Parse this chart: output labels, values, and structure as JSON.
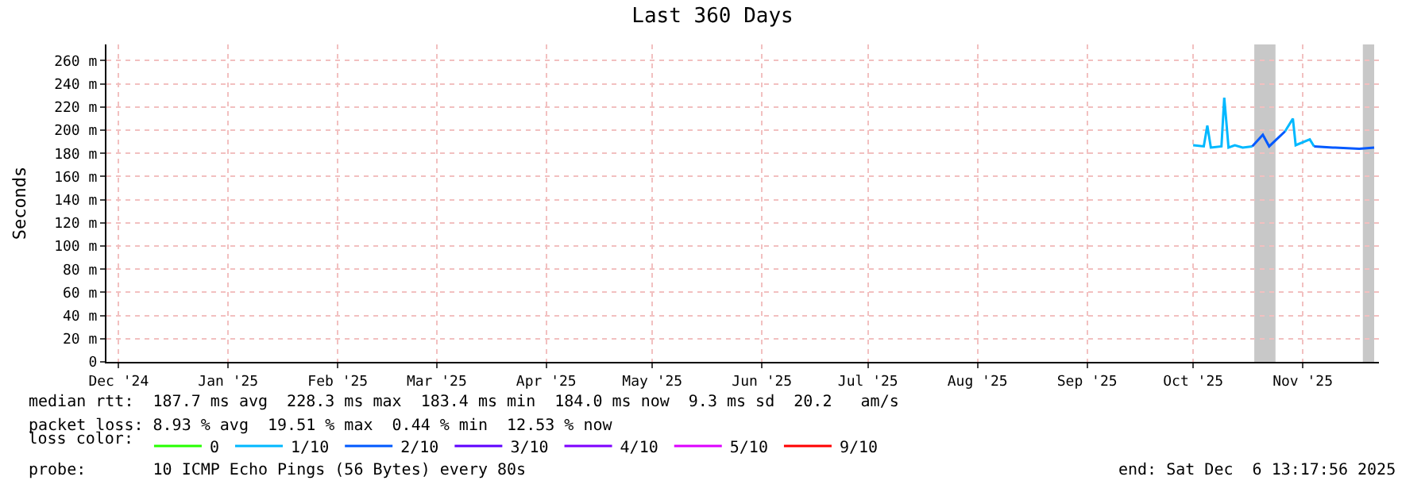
{
  "chart_data": {
    "type": "line",
    "title": "Last 360 Days",
    "ylabel": "Seconds",
    "x": [
      "2025-10-15",
      "2025-10-18",
      "2025-10-19",
      "2025-10-20",
      "2025-10-23",
      "2025-10-23T19:00",
      "2025-10-24T12:00",
      "2025-10-25",
      "2025-10-26T19:00",
      "2025-10-29",
      "2025-10-31T17:00",
      "2025-11-03T17:00",
      "2025-11-05T12:00",
      "2025-11-10",
      "2025-11-12T05:00",
      "2025-11-13",
      "2025-11-17",
      "2025-11-18T05:00",
      "2025-11-23T12:00",
      "2025-11-24T05:00",
      "2025-12-01",
      "2025-12-05T05:00"
    ],
    "series": [
      {
        "name": "0",
        "color": "#26ff00",
        "values": [
          null,
          null,
          null,
          null,
          null,
          null,
          null,
          null,
          null,
          null,
          null,
          null,
          null,
          null,
          null,
          null,
          null,
          null,
          null,
          null,
          null,
          null
        ]
      },
      {
        "name": "1/10",
        "color": "#00b8ff",
        "values": [
          187,
          186,
          204,
          185,
          186,
          228,
          203,
          185,
          187,
          185,
          186,
          null,
          null,
          199,
          210,
          187,
          192,
          186,
          null,
          null,
          null,
          null
        ]
      },
      {
        "name": "2/10",
        "color": "#0059ff",
        "values": [
          null,
          null,
          null,
          null,
          null,
          null,
          null,
          null,
          null,
          null,
          186,
          196,
          186,
          199,
          null,
          null,
          null,
          186,
          185,
          185,
          184,
          185
        ]
      },
      {
        "name": "3/10",
        "color": "#5e00ff",
        "values": [
          null,
          null,
          null,
          null,
          null,
          null,
          null,
          null,
          null,
          null,
          null,
          null,
          null,
          null,
          null,
          null,
          null,
          null,
          null,
          null,
          null,
          null
        ]
      },
      {
        "name": "4/10",
        "color": "#7e00ff",
        "values": [
          null,
          null,
          null,
          null,
          null,
          null,
          null,
          null,
          null,
          null,
          null,
          null,
          null,
          null,
          null,
          null,
          null,
          null,
          null,
          null,
          null,
          null
        ]
      },
      {
        "name": "5/10",
        "color": "#dd00ff",
        "values": [
          null,
          null,
          null,
          null,
          null,
          null,
          null,
          null,
          null,
          null,
          null,
          null,
          null,
          null,
          null,
          null,
          null,
          null,
          null,
          null,
          null,
          null
        ]
      },
      {
        "name": "9/10",
        "color": "#ff0000",
        "values": [
          null,
          null,
          null,
          null,
          null,
          null,
          null,
          null,
          null,
          null,
          null,
          null,
          null,
          null,
          null,
          null,
          null,
          null,
          null,
          null,
          null,
          null
        ]
      }
    ],
    "legend_title": "loss color:",
    "xlim": [
      "2024-12-11T13:17",
      "2025-12-06T13:17"
    ],
    "xticks": [
      {
        "value": "2024-12-15",
        "label": "Dec '24"
      },
      {
        "value": "2025-01-15",
        "label": "Jan '25"
      },
      {
        "value": "2025-02-15",
        "label": "Feb '25"
      },
      {
        "value": "2025-03-15",
        "label": "Mar '25"
      },
      {
        "value": "2025-04-15",
        "label": "Apr '25"
      },
      {
        "value": "2025-05-15",
        "label": "May '25"
      },
      {
        "value": "2025-06-15",
        "label": "Jun '25"
      },
      {
        "value": "2025-07-15",
        "label": "Jul '25"
      },
      {
        "value": "2025-08-15",
        "label": "Aug '25"
      },
      {
        "value": "2025-09-15",
        "label": "Sep '25"
      },
      {
        "value": "2025-10-15",
        "label": "Oct '25"
      },
      {
        "value": "2025-11-15",
        "label": "Nov '25"
      }
    ],
    "ylim": [
      0,
      274
    ],
    "yticks": [
      0,
      {
        "value": 20,
        "label": "20 m"
      },
      {
        "value": 40,
        "label": "40 m"
      },
      {
        "value": 60,
        "label": "60 m"
      },
      {
        "value": 80,
        "label": "80 m"
      },
      {
        "value": 100,
        "label": "100 m"
      },
      {
        "value": 120,
        "label": "120 m"
      },
      {
        "value": 140,
        "label": "140 m"
      },
      {
        "value": 160,
        "label": "160 m"
      },
      {
        "value": 180,
        "label": "180 m"
      },
      {
        "value": 200,
        "label": "200 m"
      },
      {
        "value": 220,
        "label": "220 m"
      },
      {
        "value": 240,
        "label": "240 m"
      },
      {
        "value": 260,
        "label": "260 m"
      }
    ],
    "bands": [
      {
        "axis": "x",
        "from": "2025-11-01T07:00",
        "to": "2025-11-07T07:00",
        "color": "#c8c8c8"
      },
      {
        "axis": "x",
        "from": "2025-12-02",
        "to": "2025-12-05T05:00",
        "color": "#c8c8c8"
      }
    ],
    "grid": true,
    "legend": "bottom",
    "marker": "none",
    "line_style": "solid",
    "annotations": [
      "median rtt:  187.7 ms avg  228.3 ms max  183.4 ms min  184.0 ms now  9.3 ms sd  20.2   am/s",
      "packet loss: 8.93 % avg  19.51 % max  0.44 % min  12.53 % now",
      "probe:       10 ICMP Echo Pings (56 Bytes) every 80s",
      "end: Sat Dec  6 13:17:56 2025"
    ]
  }
}
